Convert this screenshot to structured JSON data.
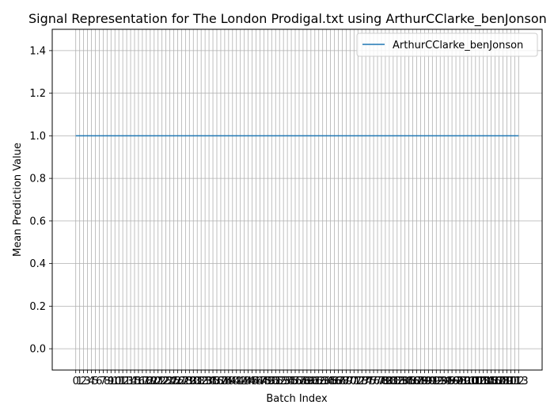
{
  "chart_data": {
    "type": "line",
    "title": "Signal Representation for The London Prodigal.txt using ArthurCClarke_benJonson",
    "xlabel": "Batch Index",
    "ylabel": "Mean Prediction Value",
    "x_ticks": [
      "0",
      "1",
      "2",
      "3",
      "4",
      "5",
      "6",
      "7",
      "8",
      "9",
      "10",
      "11",
      "12",
      "13",
      "14",
      "15",
      "16",
      "17",
      "18",
      "19",
      "20",
      "21",
      "22",
      "23",
      "24",
      "25",
      "26",
      "27",
      "28",
      "29",
      "30",
      "31",
      "32",
      "33",
      "34",
      "35",
      "36",
      "37",
      "38",
      "39",
      "40",
      "41",
      "42",
      "43",
      "44",
      "45",
      "46",
      "47",
      "48",
      "49",
      "50",
      "51",
      "52",
      "53",
      "54",
      "55",
      "56",
      "57",
      "58",
      "59",
      "60",
      "61",
      "62",
      "63",
      "64",
      "65",
      "66",
      "67",
      "68",
      "69",
      "70",
      "71",
      "72",
      "73",
      "74",
      "75",
      "76",
      "77",
      "78",
      "79",
      "80",
      "81",
      "82",
      "83",
      "84",
      "85",
      "86",
      "87",
      "88",
      "89",
      "90",
      "91",
      "92",
      "93",
      "94",
      "95",
      "96",
      "97",
      "98",
      "99",
      "100",
      "101",
      "102",
      "103",
      "104",
      "105",
      "106",
      "107",
      "108",
      "109",
      "110",
      "111",
      "112",
      "113"
    ],
    "y_ticks": [
      "0.0",
      "0.2",
      "0.4",
      "0.6",
      "0.8",
      "1.0",
      "1.2",
      "1.4"
    ],
    "xlim": [
      -6,
      119
    ],
    "ylim": [
      -0.1,
      1.5
    ],
    "grid": true,
    "legend_position": "top-right",
    "series": [
      {
        "name": "ArthurCClarke_benJonson",
        "color": "#1f77b4",
        "x_start": 0,
        "x_end": 113,
        "value": 1.0
      }
    ]
  }
}
